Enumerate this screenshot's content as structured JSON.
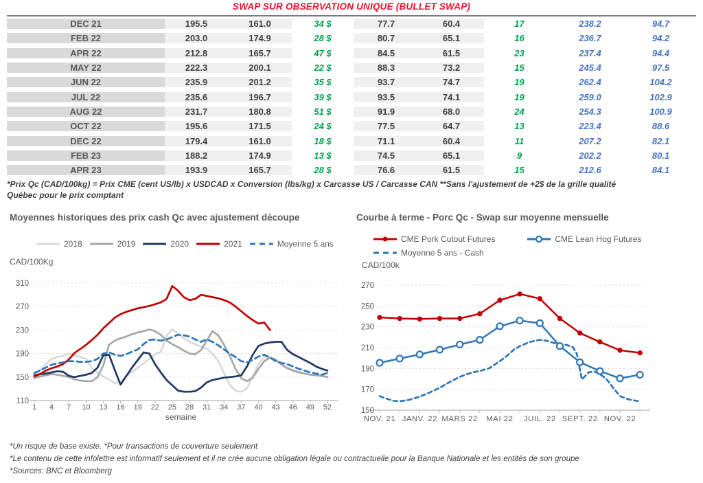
{
  "title": "SWAP SUR OBSERVATION UNIQUE (BULLET SWAP)",
  "colors": {
    "title_red": "#e8112d",
    "table_green": "#00a04d",
    "table_blue": "#4472c4",
    "month_bg": "#d9d9d9",
    "shade_bg": "#efefef",
    "text_gray": "#595959"
  },
  "table": {
    "rows": [
      [
        "DEC 21",
        "195.5",
        "161.0",
        "34 $",
        "77.7",
        "60.4",
        "17",
        "238.2",
        "94.7"
      ],
      [
        "FEB 22",
        "203.0",
        "174.9",
        "28 $",
        "80.7",
        "65.1",
        "16",
        "236.7",
        "94.2"
      ],
      [
        "APR 22",
        "212.8",
        "165.7",
        "47 $",
        "84.5",
        "61.5",
        "23",
        "237.4",
        "94.4"
      ],
      [
        "MAY 22",
        "222.3",
        "200.1",
        "22 $",
        "88.3",
        "73.2",
        "15",
        "245.4",
        "97.5"
      ],
      [
        "JUN 22",
        "235.9",
        "201.2",
        "35 $",
        "93.7",
        "74.7",
        "19",
        "262.4",
        "104.2"
      ],
      [
        "JUL 22",
        "235.6",
        "196.7",
        "39 $",
        "93.5",
        "74.1",
        "19",
        "259.0",
        "102.9"
      ],
      [
        "AUG 22",
        "231.7",
        "180.8",
        "51 $",
        "91.9",
        "68.0",
        "24",
        "254.3",
        "100.9"
      ],
      [
        "OCT 22",
        "195.6",
        "171.5",
        "24 $",
        "77.5",
        "64.7",
        "13",
        "223.4",
        "88.6"
      ],
      [
        "DEC 22",
        "179.4",
        "161.0",
        "18 $",
        "71.1",
        "60.4",
        "11",
        "207.2",
        "82.1"
      ],
      [
        "FEB 23",
        "188.2",
        "174.9",
        "13 $",
        "74.5",
        "65.1",
        "9",
        "202.2",
        "80.1"
      ],
      [
        "APR 23",
        "193.9",
        "165.7",
        "28 $",
        "76.6",
        "61.5",
        "15",
        "212.6",
        "84.1"
      ]
    ],
    "note_lines": [
      "*Prix Qc (CAD/100kg) = Prix CME (cent US/lb) x USDCAD x Conversion (lbs/kg) x Carcasse US / Carcasse CAN **Sans l'ajustement de +2$ de la grille qualité",
      "Québec pour le prix comptant"
    ]
  },
  "chart_data": [
    {
      "type": "line",
      "title": "Moyennes historiques des prix cash Qc avec ajustement découpe",
      "ylabel": "CAD/100Kg",
      "xlabel": "semaine",
      "ylim": [
        110,
        310
      ],
      "yticks": [
        110,
        150,
        190,
        230,
        270,
        310
      ],
      "xtick_positions": [
        1,
        4,
        7,
        10,
        13,
        16,
        19,
        22,
        25,
        28,
        31,
        34,
        37,
        40,
        43,
        46,
        49,
        52
      ],
      "xtick_labels": [
        "1",
        "4",
        "7",
        "10",
        "13",
        "16",
        "19",
        "22",
        "25",
        "28",
        "31",
        "34",
        "37",
        "40",
        "43",
        "46",
        "49",
        "52"
      ],
      "legend_position": "top",
      "grid": "dashed-horizontal",
      "series": [
        {
          "name": "2018",
          "color": "#d9d9d9",
          "style": "solid",
          "x": [
            1,
            2,
            3,
            4,
            5,
            6,
            7,
            8,
            9,
            10,
            11,
            12,
            13,
            14,
            15,
            16,
            17,
            18,
            19,
            20,
            21,
            22,
            23,
            24,
            25,
            26,
            27,
            28,
            29,
            30,
            31,
            32,
            33,
            34,
            35,
            36,
            37,
            38,
            39,
            40,
            41,
            42,
            43,
            44,
            45,
            46,
            47,
            48,
            49,
            50,
            51,
            52
          ],
          "values": [
            155,
            162,
            172,
            181,
            184,
            186,
            190,
            187,
            184,
            181,
            166,
            157,
            151,
            146,
            139,
            142,
            151,
            159,
            166,
            173,
            181,
            189,
            193,
            220,
            231,
            224,
            216,
            210,
            206,
            202,
            198,
            190,
            177,
            157,
            137,
            127,
            125,
            131,
            152,
            172,
            184,
            183,
            178,
            172,
            166,
            162,
            159,
            156,
            154,
            153,
            152,
            150
          ]
        },
        {
          "name": "2019",
          "color": "#a6a6a6",
          "style": "solid",
          "x": [
            1,
            2,
            3,
            4,
            5,
            6,
            7,
            8,
            9,
            10,
            11,
            12,
            13,
            14,
            15,
            16,
            17,
            18,
            19,
            20,
            21,
            22,
            23,
            24,
            25,
            26,
            27,
            28,
            29,
            30,
            31,
            32,
            33,
            34,
            35,
            36,
            37,
            38,
            39,
            40,
            41,
            42,
            43,
            44,
            45,
            46,
            47,
            48,
            49,
            50,
            51,
            52
          ],
          "values": [
            148,
            151,
            153,
            155,
            154,
            152,
            150,
            146,
            144,
            143,
            143,
            150,
            170,
            205,
            212,
            216,
            219,
            223,
            226,
            228,
            231,
            228,
            222,
            212,
            206,
            201,
            195,
            190,
            189,
            196,
            212,
            228,
            221,
            205,
            186,
            164,
            148,
            143,
            149,
            164,
            177,
            183,
            180,
            171,
            165,
            161,
            158,
            156,
            154,
            153,
            152,
            150
          ]
        },
        {
          "name": "2020",
          "color": "#1f3864",
          "style": "solid",
          "x": [
            1,
            2,
            3,
            4,
            5,
            6,
            7,
            8,
            9,
            10,
            11,
            12,
            13,
            14,
            15,
            16,
            17,
            18,
            19,
            20,
            21,
            22,
            23,
            24,
            25,
            26,
            27,
            28,
            29,
            30,
            31,
            32,
            33,
            34,
            35,
            36,
            37,
            38,
            39,
            40,
            41,
            42,
            43,
            44,
            45,
            46,
            47,
            48,
            49,
            50,
            51,
            52
          ],
          "values": [
            153,
            155,
            156,
            158,
            160,
            159,
            152,
            150,
            152,
            154,
            157,
            166,
            187,
            188,
            162,
            137,
            152,
            166,
            179,
            192,
            190,
            172,
            158,
            145,
            136,
            127,
            125,
            125,
            126,
            132,
            141,
            145,
            147,
            149,
            150,
            151,
            153,
            168,
            188,
            203,
            207,
            209,
            210,
            210,
            196,
            189,
            184,
            179,
            174,
            168,
            164,
            161
          ]
        },
        {
          "name": "2021",
          "color": "#c00000",
          "style": "solid",
          "x": [
            1,
            2,
            3,
            4,
            5,
            6,
            7,
            8,
            9,
            10,
            11,
            12,
            13,
            14,
            15,
            16,
            17,
            18,
            19,
            20,
            21,
            22,
            23,
            24,
            25,
            26,
            27,
            28,
            29,
            30,
            31,
            32,
            33,
            34,
            35,
            36,
            37,
            38,
            39,
            40,
            41,
            42
          ],
          "values": [
            151,
            155,
            161,
            165,
            168,
            172,
            180,
            191,
            198,
            205,
            213,
            222,
            233,
            242,
            251,
            257,
            261,
            264,
            267,
            269,
            271,
            274,
            277,
            283,
            305,
            297,
            286,
            281,
            283,
            290,
            288,
            286,
            284,
            281,
            277,
            270,
            262,
            254,
            247,
            241,
            243,
            230
          ]
        },
        {
          "name": "Moyenne 5 ans",
          "color": "#2e75b6",
          "style": "dashed",
          "x": [
            1,
            2,
            3,
            4,
            5,
            6,
            7,
            8,
            9,
            10,
            11,
            12,
            13,
            14,
            15,
            16,
            17,
            18,
            19,
            20,
            21,
            22,
            23,
            24,
            25,
            26,
            27,
            28,
            29,
            30,
            31,
            32,
            33,
            34,
            35,
            36,
            37,
            38,
            39,
            40,
            41,
            42,
            43,
            44,
            45,
            46,
            47,
            48,
            49,
            50,
            51,
            52
          ],
          "values": [
            157,
            161,
            166,
            171,
            173,
            175,
            177,
            177,
            176,
            176,
            177,
            181,
            190,
            192,
            188,
            186,
            189,
            193,
            197,
            206,
            213,
            214,
            212,
            214,
            218,
            222,
            221,
            219,
            214,
            210,
            214,
            210,
            204,
            197,
            190,
            184,
            177,
            175,
            179,
            185,
            188,
            183,
            177,
            174,
            172,
            168,
            164,
            161,
            158,
            156,
            154,
            157
          ]
        }
      ]
    },
    {
      "type": "line",
      "title": "Courbe à terme - Porc Qc - Swap sur moyenne mensuelle",
      "ylabel": "CAD/100k",
      "xlabel": "",
      "ylim": [
        150,
        270
      ],
      "yticks": [
        150,
        170,
        190,
        210,
        230,
        250,
        270
      ],
      "xtick_positions": [
        0,
        2,
        4,
        6,
        8,
        10,
        12
      ],
      "xtick_labels": [
        "NOV. 21",
        "JANV. 22",
        "MARS 22",
        "MAI 22",
        "JUIL. 22",
        "SEPT. 22",
        "NOV. 22"
      ],
      "minor_tick_positions": [
        0,
        1,
        2,
        3,
        4,
        5,
        6,
        7,
        8,
        9,
        10,
        11,
        12,
        13
      ],
      "legend_position": "top",
      "grid": "dashed-horizontal",
      "draw_order": [
        2,
        1,
        0
      ],
      "series": [
        {
          "name": "CME Pork Cutout Futures",
          "color": "#c00000",
          "style": "solid",
          "marker": "dot",
          "x": [
            0,
            1,
            2,
            3,
            4,
            5,
            6,
            7,
            8,
            9,
            10,
            11,
            12,
            13
          ],
          "values": [
            239,
            238,
            237.5,
            238,
            238,
            242.5,
            255.5,
            261.5,
            257,
            238,
            224,
            215.5,
            207.5,
            205
          ]
        },
        {
          "name": "CME Lean Hog Futures",
          "color": "#2e75b6",
          "style": "solid",
          "marker": "circle",
          "x": [
            0,
            1,
            2,
            3,
            4,
            5,
            6,
            7,
            8,
            9,
            10,
            11,
            12,
            13
          ],
          "values": [
            195.5,
            199.5,
            203.5,
            208,
            213,
            217.5,
            230.5,
            236,
            233.5,
            211.5,
            196,
            187.5,
            180.5,
            184
          ]
        },
        {
          "name": "Moyenne 5 ans - Cash",
          "color": "#2e75b6",
          "style": "dashed",
          "points": [
            [
              0,
              163.5
            ],
            [
              0.35,
              161
            ],
            [
              0.7,
              159
            ],
            [
              1,
              158.5
            ],
            [
              1.5,
              160
            ],
            [
              2,
              163
            ],
            [
              2.5,
              167
            ],
            [
              3,
              171.5
            ],
            [
              3.5,
              177
            ],
            [
              4,
              182
            ],
            [
              4.35,
              184.5
            ],
            [
              4.7,
              186.5
            ],
            [
              5,
              187.5
            ],
            [
              5.5,
              190.5
            ],
            [
              6,
              197
            ],
            [
              6.35,
              202
            ],
            [
              6.7,
              208
            ],
            [
              7,
              211.5
            ],
            [
              7.5,
              215.5
            ],
            [
              8,
              217.5
            ],
            [
              8.35,
              216.5
            ],
            [
              8.7,
              214.5
            ],
            [
              9,
              213.5
            ],
            [
              9.35,
              212.5
            ],
            [
              9.65,
              210.5
            ],
            [
              9.85,
              204
            ],
            [
              10.1,
              179.5
            ],
            [
              10.45,
              186.5
            ],
            [
              10.75,
              187
            ],
            [
              11,
              184.5
            ],
            [
              11.3,
              180.5
            ],
            [
              11.7,
              170.5
            ],
            [
              12,
              163.5
            ],
            [
              12.4,
              160.5
            ],
            [
              12.8,
              159
            ],
            [
              13,
              158.5
            ]
          ]
        }
      ]
    }
  ],
  "footnotes": [
    "*Un risque de base existe. *Pour transactions de couverture seulement",
    "*Le contenu de cette infolettre est informatif seulement et il ne crée aucune obligation légale ou contractuelle pour la Banque Nationale et les entités de son groupe",
    "*Sources: BNC et Bloomberg"
  ]
}
